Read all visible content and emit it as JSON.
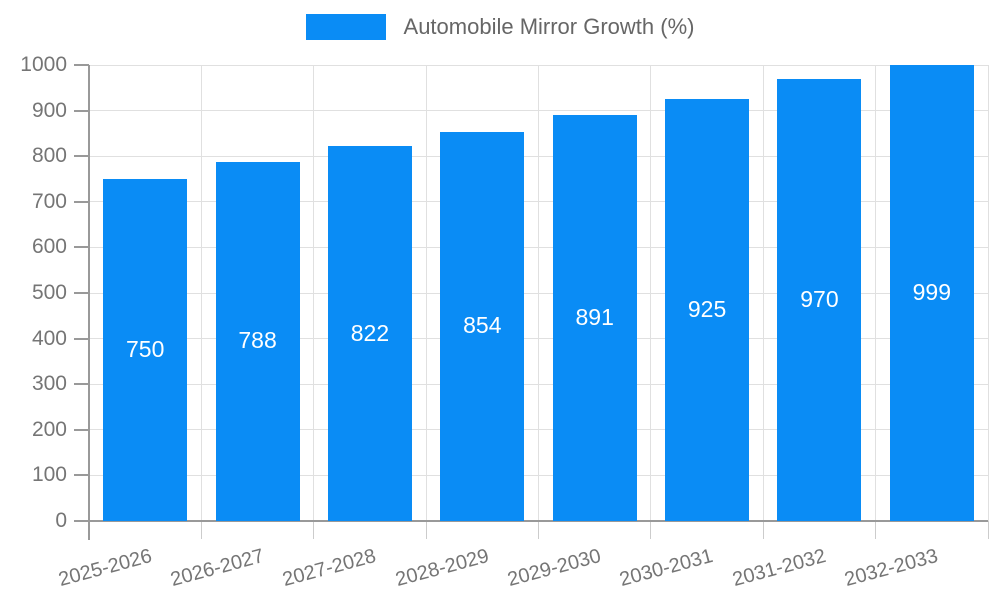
{
  "legend": {
    "label": "Automobile Mirror Growth (%)"
  },
  "chart_data": {
    "type": "bar",
    "title": "",
    "legend_entries": [
      "Automobile Mirror Growth (%)"
    ],
    "legend_position": "top-center",
    "categories": [
      "2025-2026",
      "2026-2027",
      "2027-2028",
      "2028-2029",
      "2029-2030",
      "2030-2031",
      "2031-2032",
      "2032-2033"
    ],
    "values": [
      750,
      788,
      822,
      854,
      891,
      925,
      970,
      999
    ],
    "xlabel": "",
    "ylabel": "",
    "ylim": [
      0,
      1000
    ],
    "ytick_step": 100,
    "yticks": [
      0,
      100,
      200,
      300,
      400,
      500,
      600,
      700,
      800,
      900,
      1000
    ],
    "grid": true,
    "value_labels_inside_bars": true
  },
  "colors": {
    "bar": "#0A8CF5",
    "grid": "#E0E0E0",
    "axis": "#999999",
    "x_boundary_tick": "#CCCCCC",
    "axis_label_text": "#757575",
    "legend_text": "#666666",
    "value_label_text": "#FFFFFF"
  }
}
